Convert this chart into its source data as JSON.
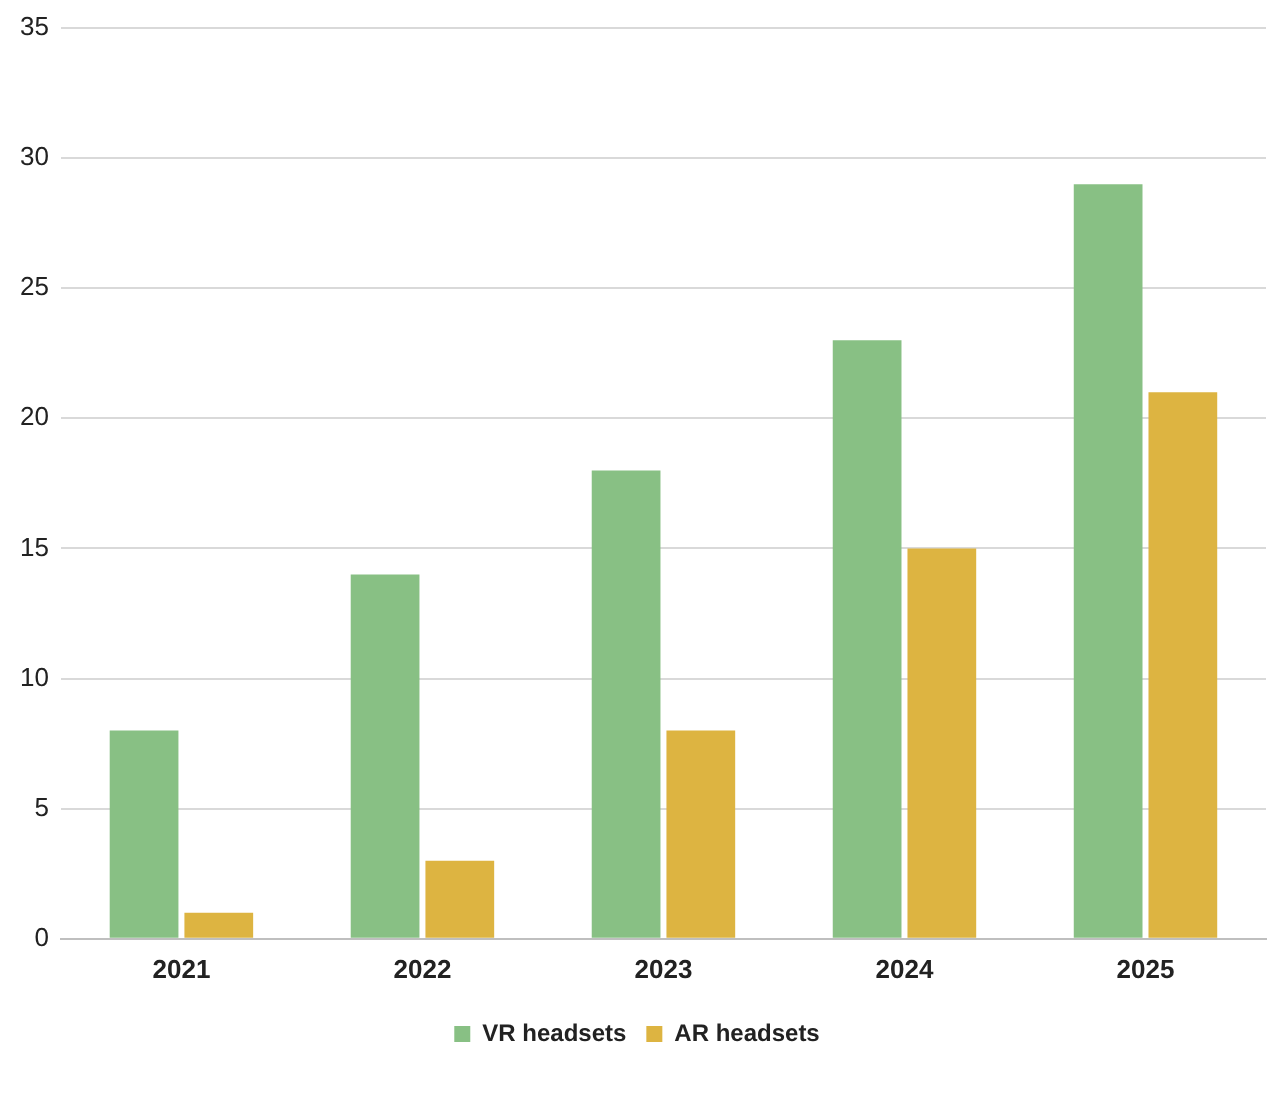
{
  "chart_data": {
    "type": "bar",
    "categories": [
      "2021",
      "2022",
      "2023",
      "2024",
      "2025"
    ],
    "series": [
      {
        "name": "VR headsets",
        "color": "#88c084",
        "values": [
          8,
          14,
          18,
          23,
          29
        ]
      },
      {
        "name": "AR headsets",
        "color": "#ddb441",
        "values": [
          1,
          3,
          8,
          15,
          21
        ]
      }
    ],
    "ylim": [
      0,
      35
    ],
    "yticks": [
      0,
      5,
      10,
      15,
      20,
      25,
      30,
      35
    ],
    "grid": "y",
    "legend": "bottom"
  }
}
